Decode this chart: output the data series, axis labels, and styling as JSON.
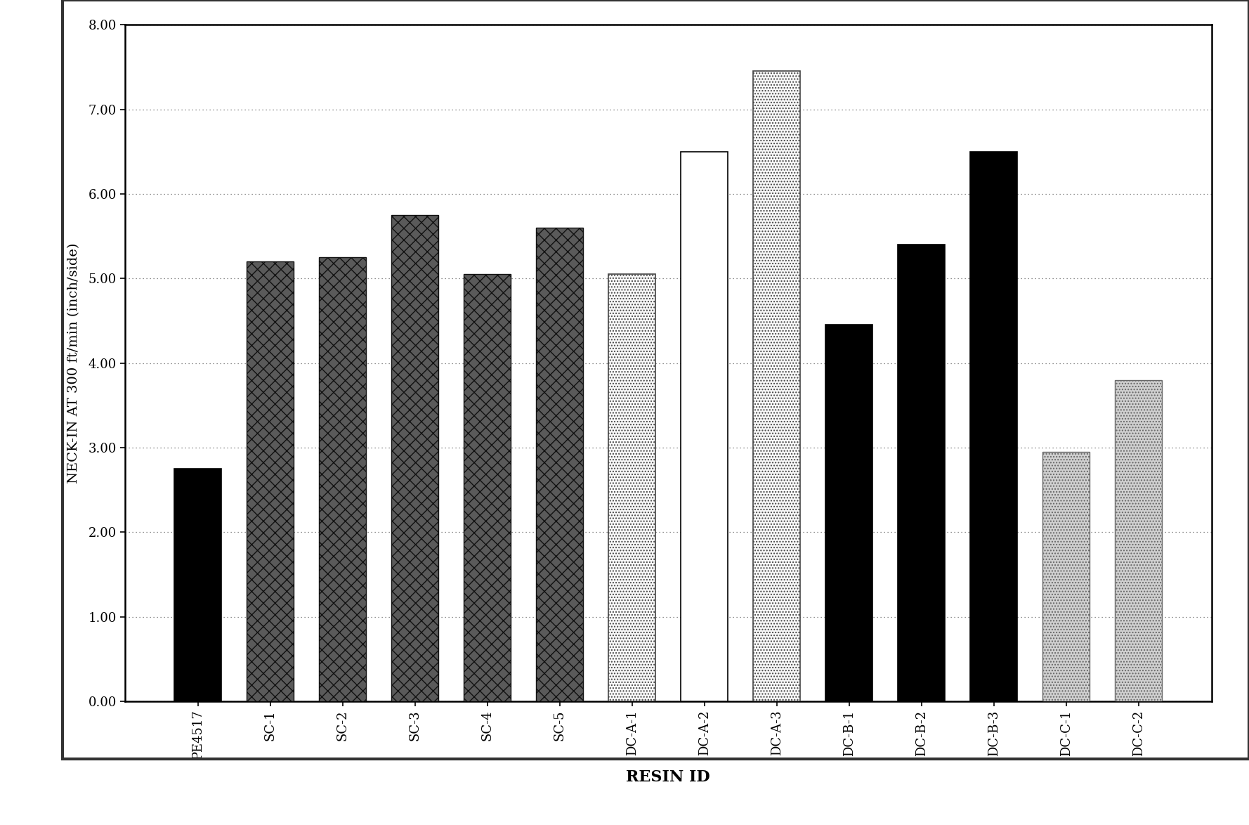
{
  "categories": [
    "PE4517",
    "SC-1",
    "SC-2",
    "SC-3",
    "SC-4",
    "SC-5",
    "DC-A-1",
    "DC-A-2",
    "DC-A-3",
    "DC-B-1",
    "DC-B-2",
    "DC-B-3",
    "DC-C-1",
    "DC-C-2"
  ],
  "values": [
    2.75,
    5.2,
    5.25,
    5.75,
    5.05,
    5.6,
    5.05,
    6.5,
    7.45,
    4.45,
    5.4,
    6.5,
    2.95,
    3.8
  ],
  "bar_styles": [
    "solid_black",
    "dark_speckle",
    "dark_speckle",
    "dark_speckle",
    "dark_speckle",
    "dark_speckle",
    "white_dotted",
    "white_plain",
    "white_dotted",
    "solid_black",
    "solid_black",
    "solid_black",
    "light_gray_dot",
    "light_gray_dot"
  ],
  "ylabel": "NECK-IN AT 300 ft/min (inch/side)",
  "xlabel": "RESIN ID",
  "ylim": [
    0.0,
    8.0
  ],
  "yticks": [
    0.0,
    1.0,
    2.0,
    3.0,
    4.0,
    5.0,
    6.0,
    7.0,
    8.0
  ],
  "ytick_labels": [
    "0.00",
    "1.00",
    "2.00",
    "3.00",
    "4.00",
    "5.00",
    "6.00",
    "7.00",
    "8.00"
  ],
  "background_color": "#ffffff",
  "outer_border_color": "#333333",
  "grid_color": "#666666",
  "label_fontsize": 14,
  "tick_fontsize": 13,
  "xlabel_fontsize": 16,
  "bar_width": 0.65
}
